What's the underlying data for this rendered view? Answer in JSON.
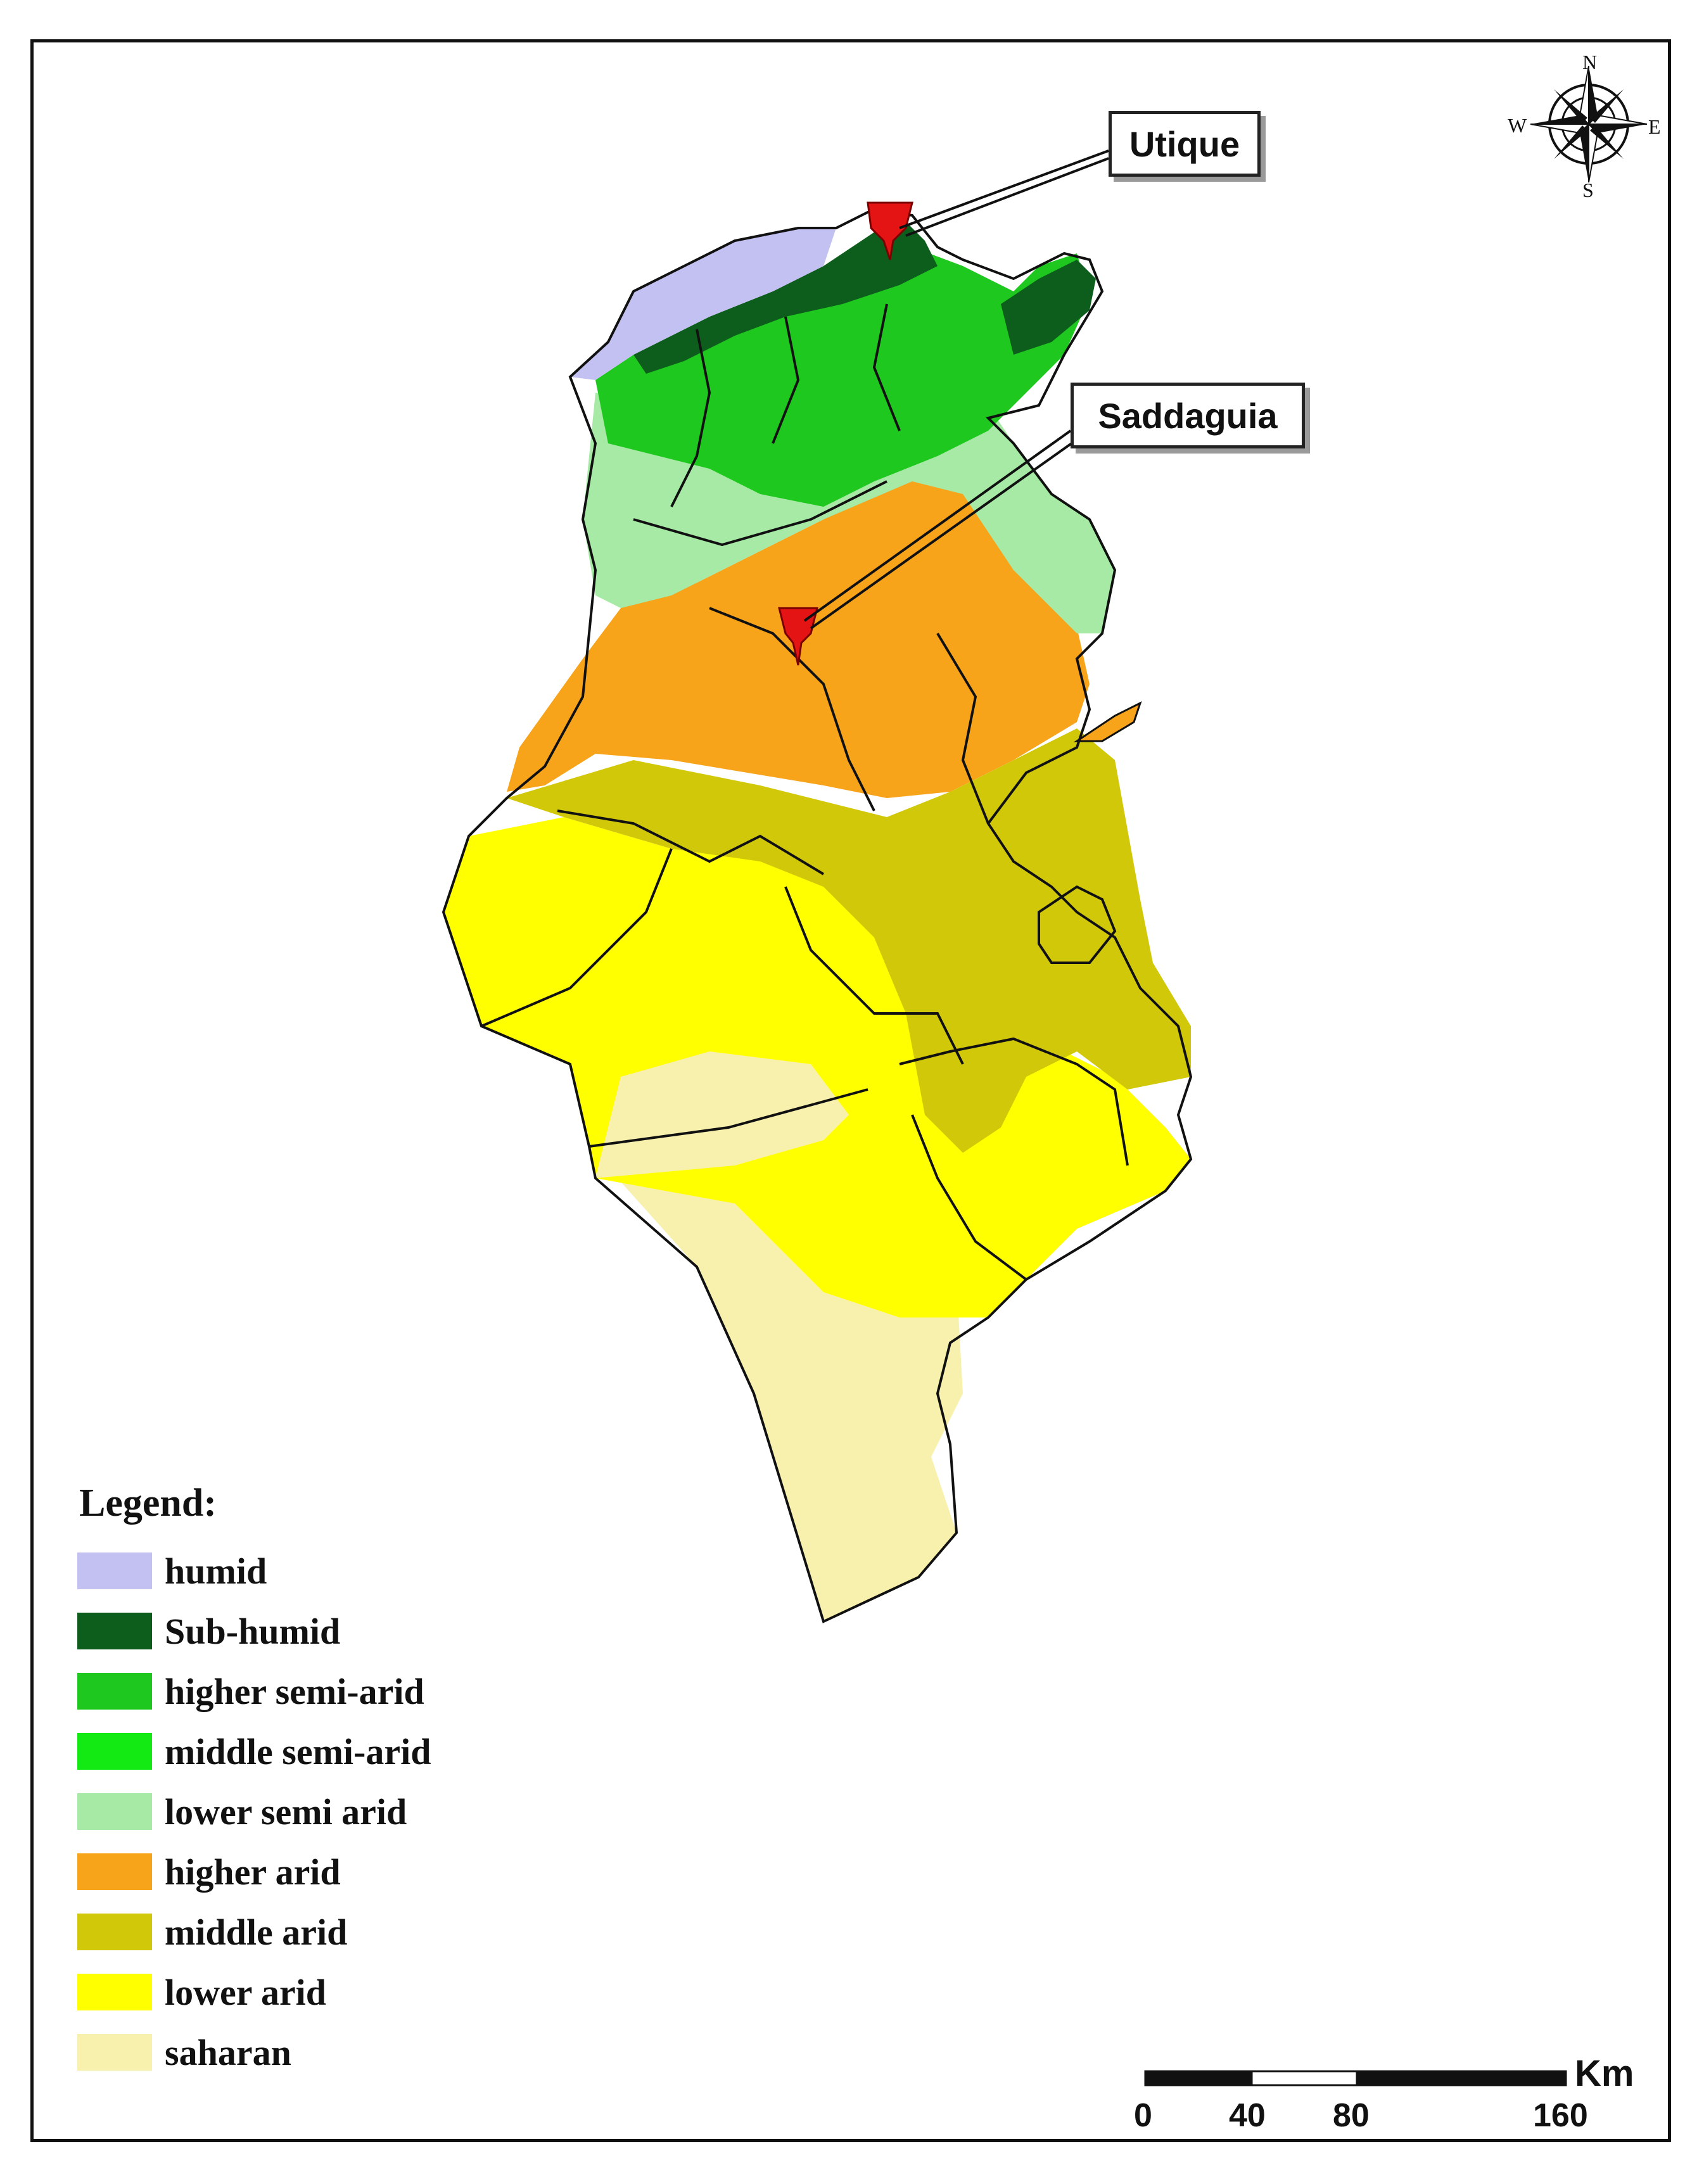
{
  "callouts": {
    "utique": "Utique",
    "saddaguia": "Saddaguia"
  },
  "compass": {
    "n": "N",
    "e": "E",
    "s": "S",
    "w": "W"
  },
  "legend": {
    "title": "Legend:",
    "items": [
      {
        "label": "humid",
        "color": "#c3c0f2"
      },
      {
        "label": "Sub-humid",
        "color": "#0d5e1c"
      },
      {
        "label": "higher semi-arid",
        "color": "#1ec81e"
      },
      {
        "label": "middle semi-arid",
        "color": "#13ea13"
      },
      {
        "label": "lower semi arid",
        "color": "#a6eaa6"
      },
      {
        "label": "higher arid",
        "color": "#f7a41a"
      },
      {
        "label": "middle arid",
        "color": "#d2c80a"
      },
      {
        "label": "lower arid",
        "color": "#ffff00"
      },
      {
        "label": "saharan",
        "color": "#f8f1ad"
      }
    ]
  },
  "scale_bar": {
    "unit": "Km",
    "ticks": [
      "0",
      "40",
      "80",
      "160"
    ]
  },
  "marker_color": "#e41414"
}
